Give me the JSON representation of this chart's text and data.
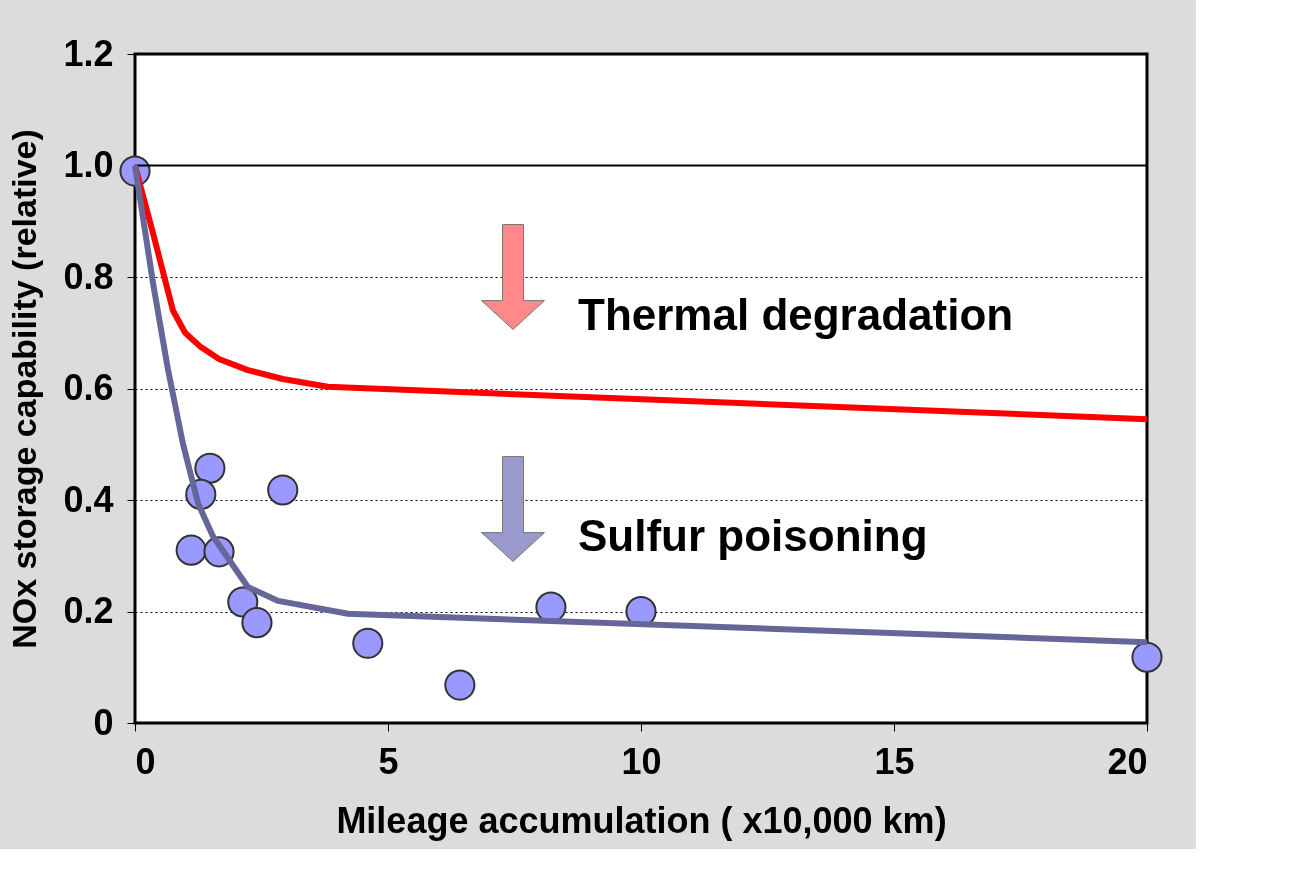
{
  "chart_data": {
    "type": "line",
    "xlabel": "Mileage accumulation ( x10,000 km)",
    "ylabel": "NOx storage capability (relative)",
    "xlim": [
      0,
      20
    ],
    "xticks": [
      0,
      5,
      10,
      15,
      20
    ],
    "ylim": [
      0,
      1.2
    ],
    "yticks": [
      0,
      0.2,
      0.4,
      0.6,
      0.8,
      {
        "value": 1.0,
        "label": "1.0"
      },
      1.2
    ],
    "grid": "y",
    "ref_lines": [
      {
        "axis": "y",
        "value": 1.0,
        "label": null,
        "color": "#000000",
        "line_style": "solid"
      }
    ],
    "annotations": [
      "Thermal degradation",
      "Sulfur poisoning"
    ],
    "series": [
      {
        "color": "#ff0000",
        "x": [
          0,
          0.36,
          0.75,
          0.99,
          1.28,
          1.66,
          2.23,
          2.92,
          3.81,
          20
        ],
        "values": [
          1.0,
          0.877,
          0.74,
          0.7,
          0.676,
          0.653,
          0.633,
          0.617,
          0.603,
          0.545
        ]
      },
      {
        "color": "#666699",
        "x": [
          0,
          0.36,
          0.65,
          0.95,
          1.25,
          1.54,
          2.23,
          2.83,
          4.21,
          20
        ],
        "values": [
          1.0,
          0.787,
          0.635,
          0.5,
          0.393,
          0.335,
          0.244,
          0.219,
          0.196,
          0.145
        ]
      },
      {
        "type": "scatter",
        "marker": "circle",
        "color": "#9999ff",
        "x": [
          0,
          1.48,
          1.3,
          1.11,
          1.66,
          2.92,
          2.13,
          2.41,
          4.6,
          6.42,
          8.22,
          10.0,
          20
        ],
        "values": [
          0.99,
          0.457,
          0.41,
          0.31,
          0.307,
          0.418,
          0.217,
          0.18,
          0.143,
          0.068,
          0.208,
          0.2,
          0.118
        ]
      }
    ]
  }
}
